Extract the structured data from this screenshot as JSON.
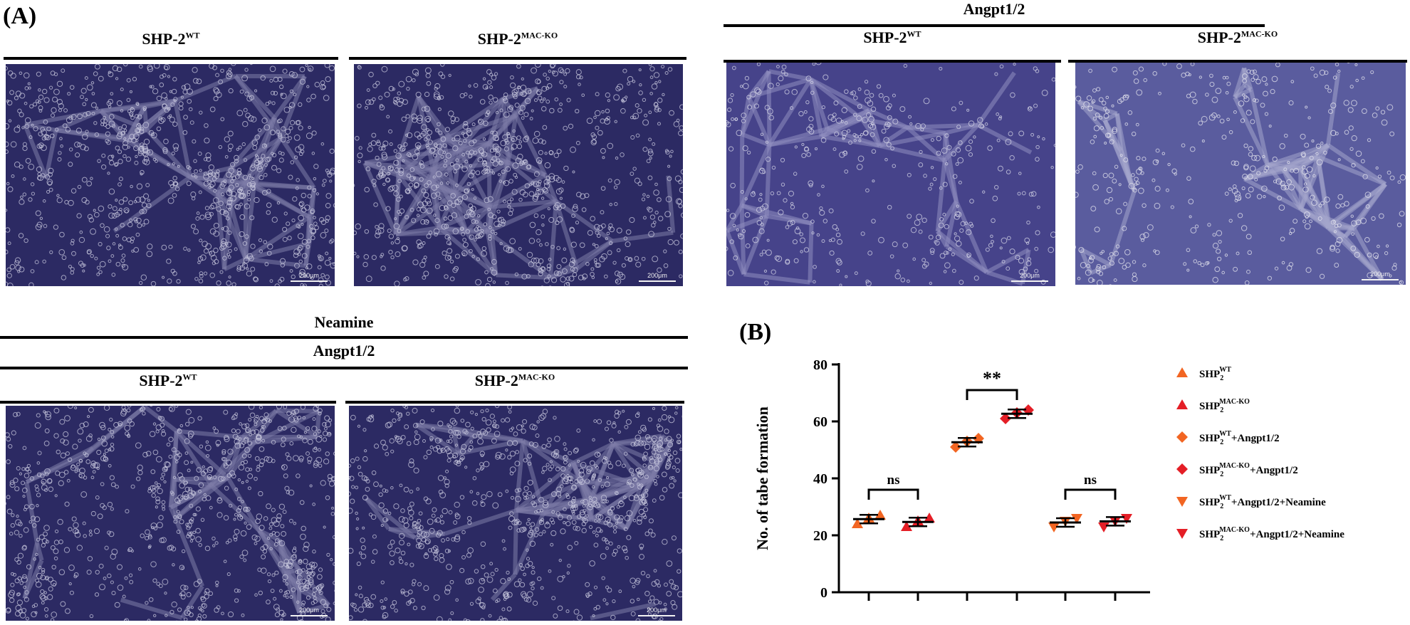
{
  "panel_a": {
    "letter": "(A)",
    "top_right_header": "Angpt1/2",
    "bottom_headers": [
      "Neamine",
      "Angpt1/2"
    ],
    "images": [
      {
        "label_base": "SHP-2",
        "label_sup": "WT",
        "scale_text": "200μm",
        "tone": "dark",
        "icon": "microscopy-image"
      },
      {
        "label_base": "SHP-2",
        "label_sup": "MAC-KO",
        "scale_text": "200μm",
        "tone": "dark",
        "icon": "microscopy-image"
      },
      {
        "label_base": "SHP-2",
        "label_sup": "WT",
        "scale_text": "200μm",
        "tone": "mid",
        "icon": "microscopy-image"
      },
      {
        "label_base": "SHP-2",
        "label_sup": "MAC-KO",
        "scale_text": "200μm",
        "tone": "light",
        "icon": "microscopy-image"
      },
      {
        "label_base": "SHP-2",
        "label_sup": "WT",
        "scale_text": "200μm",
        "tone": "dark",
        "icon": "microscopy-image"
      },
      {
        "label_base": "SHP-2",
        "label_sup": "MAC-KO",
        "scale_text": "200μm",
        "tone": "dark",
        "icon": "microscopy-image"
      }
    ]
  },
  "panel_b": {
    "letter": "(B)"
  },
  "chart_data": {
    "type": "scatter",
    "title": "",
    "ylabel": "No. of tabe formation",
    "xlabel": "",
    "ylim": [
      0,
      80
    ],
    "yticks": [
      0,
      20,
      40,
      60,
      80
    ],
    "grid": false,
    "legend_position": "right",
    "series": [
      {
        "name_base": "SHP",
        "name_sub": "2",
        "name_sup": "WT",
        "name_suffix": "",
        "marker": "triangle-up",
        "color": "#f26522",
        "values": [
          24,
          26,
          27
        ],
        "mean": 25.7,
        "sd": 1.5
      },
      {
        "name_base": "SHP",
        "name_sub": "2",
        "name_sup": "MAC-KO",
        "name_suffix": "",
        "marker": "triangle-up",
        "color": "#e41e26",
        "values": [
          23,
          25,
          26
        ],
        "mean": 24.7,
        "sd": 1.5
      },
      {
        "name_base": "SHP",
        "name_sub": "2",
        "name_sup": "WT",
        "name_suffix": "+Angpt1/2",
        "marker": "diamond",
        "color": "#f26522",
        "values": [
          51,
          53,
          54
        ],
        "mean": 52.7,
        "sd": 1.5
      },
      {
        "name_base": "SHP",
        "name_sub": "2",
        "name_sup": "MAC-KO",
        "name_suffix": "+Angpt1/2",
        "marker": "diamond",
        "color": "#e41e26",
        "values": [
          61,
          63,
          64
        ],
        "mean": 62.7,
        "sd": 1.5
      },
      {
        "name_base": "SHP",
        "name_sub": "2",
        "name_sup": "WT",
        "name_suffix": "+Angpt1/2+Neamine",
        "marker": "triangle-down",
        "color": "#f26522",
        "values": [
          23,
          25,
          26
        ],
        "mean": 24.5,
        "sd": 1.5
      },
      {
        "name_base": "SHP",
        "name_sub": "2",
        "name_sup": "MAC-KO",
        "name_suffix": "+Angpt1/2+Neamine",
        "marker": "triangle-down",
        "color": "#e41e26",
        "values": [
          23,
          25,
          26
        ],
        "mean": 24.9,
        "sd": 1.5
      }
    ],
    "annotations": [
      {
        "text": "ns",
        "groups": [
          0,
          1
        ],
        "level": 36
      },
      {
        "text": "**",
        "groups": [
          2,
          3
        ],
        "level": 71
      },
      {
        "text": "ns",
        "groups": [
          4,
          5
        ],
        "level": 36
      }
    ]
  }
}
